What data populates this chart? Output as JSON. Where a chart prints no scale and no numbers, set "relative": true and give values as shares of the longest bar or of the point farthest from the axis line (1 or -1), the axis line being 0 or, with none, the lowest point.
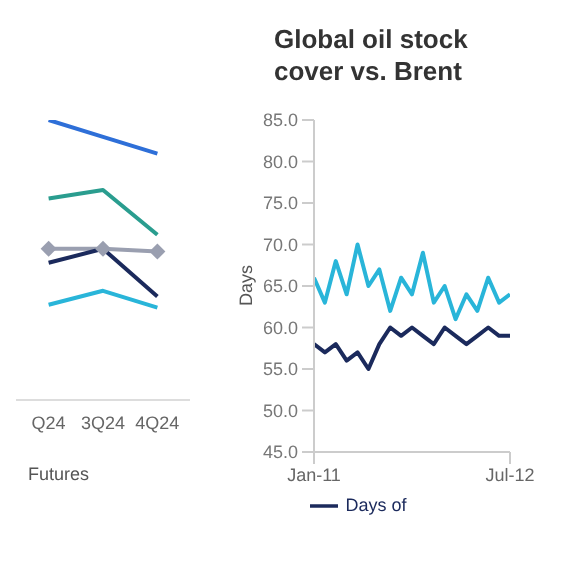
{
  "chart_data": [
    {
      "type": "line",
      "relative": true,
      "categories": [
        "Q24",
        "3Q24",
        "4Q24"
      ],
      "series": [
        {
          "color": "#2e6fd8",
          "values": [
            1,
            0.94,
            0.88
          ],
          "marker": "none"
        },
        {
          "color": "#2a9d8f",
          "values": [
            0.72,
            0.75,
            0.59
          ],
          "marker": "none"
        },
        {
          "color": "#9a9fb0",
          "values": [
            0.54,
            0.54,
            0.53
          ],
          "marker": "diamond"
        },
        {
          "color": "#1b2a5c",
          "values": [
            0.49,
            0.54,
            0.37
          ],
          "marker": "none"
        },
        {
          "color": "#29b5d9",
          "values": [
            0.34,
            0.39,
            0.33
          ],
          "marker": "none"
        }
      ],
      "annotations": [
        "Futures"
      ],
      "grid": false,
      "legend": false
    },
    {
      "type": "line",
      "title": "Global oil stock cover vs. Brent",
      "ylabel": "Days",
      "x": [
        "2011-01",
        "2011-02",
        "2011-03",
        "2011-04",
        "2011-05",
        "2011-06",
        "2011-07",
        "2011-08",
        "2011-09",
        "2011-10",
        "2011-11",
        "2011-12",
        "2012-01",
        "2012-02",
        "2012-03",
        "2012-04",
        "2012-05",
        "2012-06",
        "2012-07"
      ],
      "xlim": [
        "2011-01",
        "2012-07"
      ],
      "xticks": [
        {
          "value": "2011-01",
          "label": "Jan-11"
        },
        {
          "value": "2012-07",
          "label": "Jul-12"
        }
      ],
      "ylim": [
        45,
        85
      ],
      "yticks": [
        {
          "value": 45,
          "label": "45.0"
        },
        {
          "value": 50,
          "label": "50.0"
        },
        {
          "value": 55,
          "label": "55.0"
        },
        {
          "value": 60,
          "label": "60.0"
        },
        {
          "value": 65,
          "label": "65.0"
        },
        {
          "value": 70,
          "label": "70.0"
        },
        {
          "value": 75,
          "label": "75.0"
        },
        {
          "value": 80,
          "label": "80.0"
        },
        {
          "value": 85,
          "label": "85.0"
        }
      ],
      "series": [
        {
          "color": "#29b5d9",
          "values": [
            66,
            63,
            68,
            64,
            70,
            65,
            67,
            62,
            66,
            64,
            69,
            63,
            65,
            61,
            64,
            62,
            66,
            63,
            64
          ]
        },
        {
          "name": "Days of",
          "color": "#1b2a5c",
          "values": [
            58,
            57,
            58,
            56,
            57,
            55,
            58,
            60,
            59,
            60,
            59,
            58,
            60,
            59,
            58,
            59,
            60,
            59,
            59
          ]
        }
      ],
      "grid": false,
      "legend": "bottom"
    }
  ]
}
